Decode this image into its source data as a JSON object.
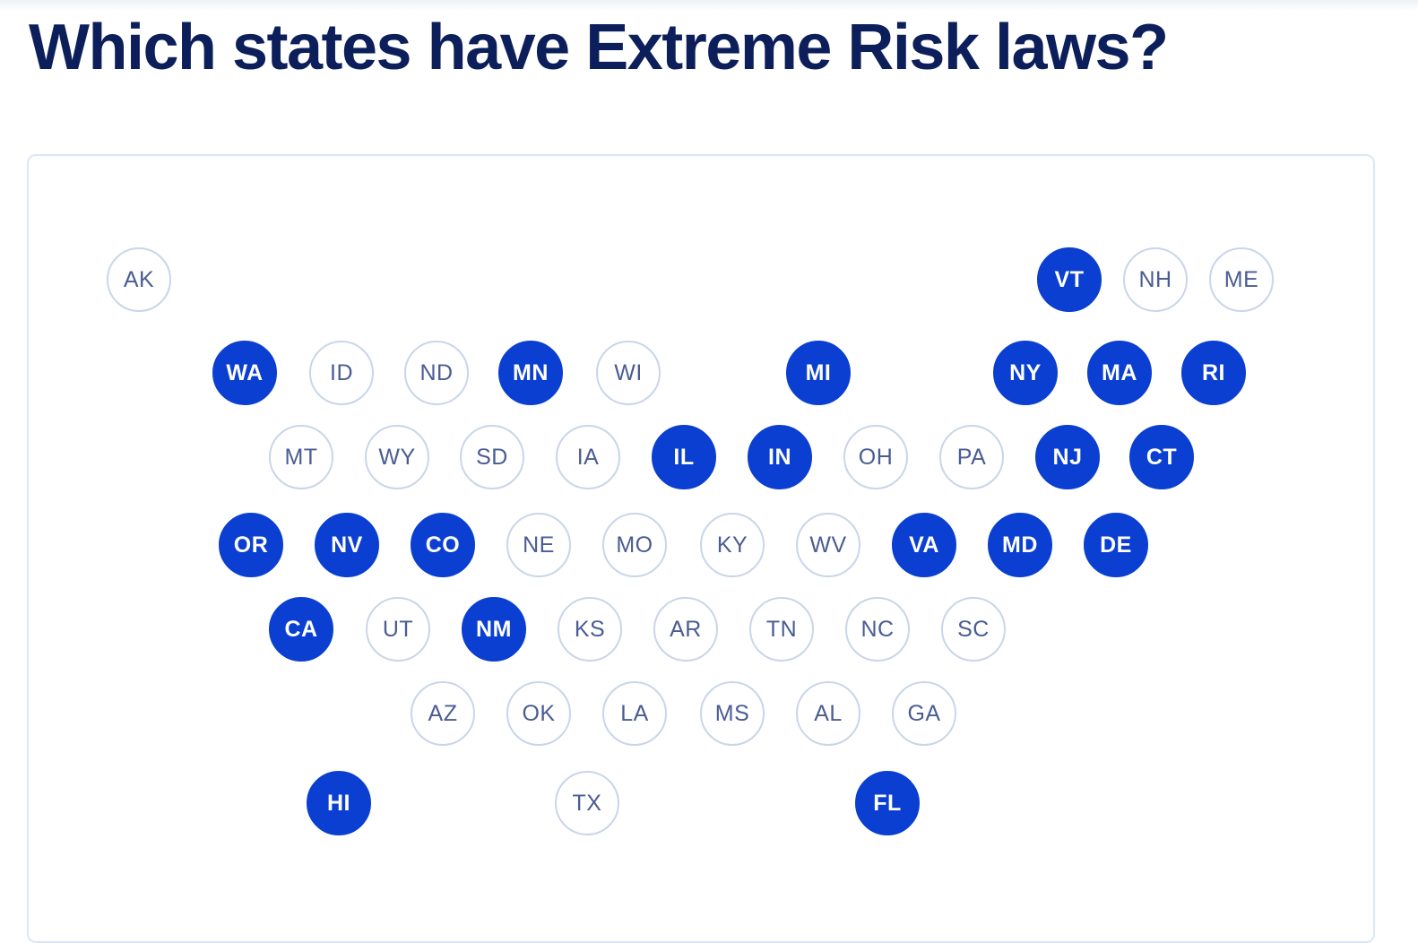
{
  "title": "Which states have Extreme Risk laws?",
  "colors": {
    "has_law": "#0a3fd1",
    "no_law": "#ffffff",
    "outline": "#c9d5ea",
    "title": "#0c1f5a"
  },
  "states": [
    {
      "abbr": "AK",
      "has_law": false
    },
    {
      "abbr": "VT",
      "has_law": true
    },
    {
      "abbr": "NH",
      "has_law": false
    },
    {
      "abbr": "ME",
      "has_law": false
    },
    {
      "abbr": "WA",
      "has_law": true
    },
    {
      "abbr": "ID",
      "has_law": false
    },
    {
      "abbr": "ND",
      "has_law": false
    },
    {
      "abbr": "MN",
      "has_law": true
    },
    {
      "abbr": "WI",
      "has_law": false
    },
    {
      "abbr": "MI",
      "has_law": true
    },
    {
      "abbr": "NY",
      "has_law": true
    },
    {
      "abbr": "MA",
      "has_law": true
    },
    {
      "abbr": "RI",
      "has_law": true
    },
    {
      "abbr": "MT",
      "has_law": false
    },
    {
      "abbr": "WY",
      "has_law": false
    },
    {
      "abbr": "SD",
      "has_law": false
    },
    {
      "abbr": "IA",
      "has_law": false
    },
    {
      "abbr": "IL",
      "has_law": true
    },
    {
      "abbr": "IN",
      "has_law": true
    },
    {
      "abbr": "OH",
      "has_law": false
    },
    {
      "abbr": "PA",
      "has_law": false
    },
    {
      "abbr": "NJ",
      "has_law": true
    },
    {
      "abbr": "CT",
      "has_law": true
    },
    {
      "abbr": "OR",
      "has_law": true
    },
    {
      "abbr": "NV",
      "has_law": true
    },
    {
      "abbr": "CO",
      "has_law": true
    },
    {
      "abbr": "NE",
      "has_law": false
    },
    {
      "abbr": "MO",
      "has_law": false
    },
    {
      "abbr": "KY",
      "has_law": false
    },
    {
      "abbr": "WV",
      "has_law": false
    },
    {
      "abbr": "VA",
      "has_law": true
    },
    {
      "abbr": "MD",
      "has_law": true
    },
    {
      "abbr": "DE",
      "has_law": true
    },
    {
      "abbr": "CA",
      "has_law": true
    },
    {
      "abbr": "UT",
      "has_law": false
    },
    {
      "abbr": "NM",
      "has_law": true
    },
    {
      "abbr": "KS",
      "has_law": false
    },
    {
      "abbr": "AR",
      "has_law": false
    },
    {
      "abbr": "TN",
      "has_law": false
    },
    {
      "abbr": "NC",
      "has_law": false
    },
    {
      "abbr": "SC",
      "has_law": false
    },
    {
      "abbr": "AZ",
      "has_law": false
    },
    {
      "abbr": "OK",
      "has_law": false
    },
    {
      "abbr": "LA",
      "has_law": false
    },
    {
      "abbr": "MS",
      "has_law": false
    },
    {
      "abbr": "AL",
      "has_law": false
    },
    {
      "abbr": "GA",
      "has_law": false
    },
    {
      "abbr": "HI",
      "has_law": true
    },
    {
      "abbr": "TX",
      "has_law": false
    },
    {
      "abbr": "FL",
      "has_law": true
    }
  ]
}
